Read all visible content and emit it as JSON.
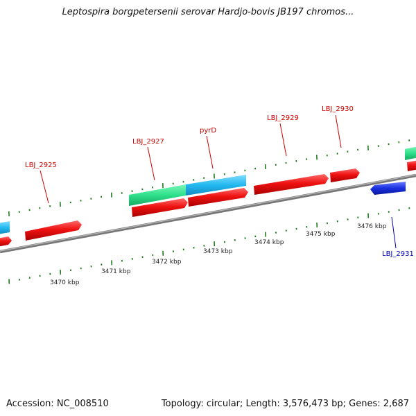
{
  "title": "Leptospira borgpetersenii serovar Hardjo-bovis JB197 chromos...",
  "footer": {
    "accession": "Accession: NC_008510",
    "summary": "Topology: circular; Length: 3,576,473 bp; Genes: 2,687"
  },
  "colors": {
    "forward_cds": "#ee1111",
    "reverse_cds": "#1a2fe0",
    "rna_green": "#2ee08a",
    "rna_cyan": "#22b8f0",
    "backbone": "#888888",
    "tick": "#1f7a1f",
    "forward_label": "#cc0000",
    "reverse_label": "#0000aa"
  },
  "scale_labels": [
    "3470 kbp",
    "3471 kbp",
    "3472 kbp",
    "3473 kbp",
    "3474 kbp",
    "3475 kbp",
    "3476 kbp"
  ],
  "gene_labels": {
    "lbj_2925": "LBJ_2925",
    "lbj_2927": "LBJ_2927",
    "pyrD": "pyrD",
    "lbj_2929": "LBJ_2929",
    "lbj_2930": "LBJ_2930",
    "lbj_2931": "LBJ_2931"
  }
}
